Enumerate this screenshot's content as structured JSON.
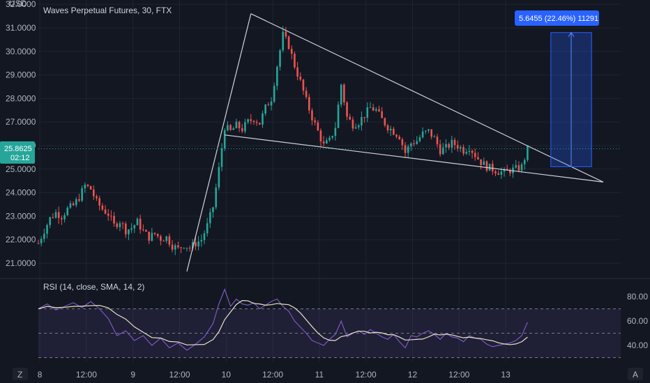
{
  "header": {
    "symbol_title": "Waves Perpetual Futures, 30, FTX",
    "currency": "USD"
  },
  "colors": {
    "background": "#131722",
    "up": "#26a69a",
    "down": "#ef5350",
    "rsi_line": "#7e57c2",
    "rsi_sma": "#e8e4c9",
    "trendline": "#d1d4dc",
    "target_box": "#1e3a8a",
    "target_label_bg": "#2962ff",
    "price_tag_bg": "#26a69a",
    "grid": "#1f2430"
  },
  "price_tag": {
    "price": "25.8625",
    "countdown": "02:12"
  },
  "target_label": "5.6455 (22.46%) 11291",
  "rsi": {
    "label": "RSI (14, close, SMA, 14, 2)",
    "ticks": [
      "80.00",
      "60.00",
      "40.00"
    ],
    "levels": [
      70,
      50,
      30
    ]
  },
  "bottom_left_button": "Z",
  "bottom_right_button": "A",
  "chart_data": {
    "type": "candlestick",
    "title": "Waves Perpetual Futures, 30, FTX",
    "y_ticks": [
      "32.0000",
      "31.0000",
      "30.0000",
      "29.0000",
      "28.0000",
      "27.0000",
      "26.0000",
      "25.0000",
      "24.0000",
      "23.0000",
      "22.0000",
      "21.0000"
    ],
    "ylim": [
      20.6,
      32.0
    ],
    "x_ticks": [
      "8",
      "12:00",
      "9",
      "12:00",
      "10",
      "12:00",
      "11",
      "12:00",
      "12",
      "12:00",
      "13"
    ],
    "price_series": [
      [
        0,
        21.85
      ],
      [
        2,
        22.4
      ],
      [
        4,
        22.9
      ],
      [
        6,
        23.15
      ],
      [
        8,
        23.0
      ],
      [
        10,
        23.3
      ],
      [
        12,
        23.45
      ],
      [
        14,
        23.8
      ],
      [
        16,
        24.3
      ],
      [
        18,
        24.15
      ],
      [
        20,
        23.6
      ],
      [
        22,
        23.3
      ],
      [
        24,
        23.1
      ],
      [
        26,
        22.6
      ],
      [
        28,
        22.8
      ],
      [
        30,
        22.4
      ],
      [
        32,
        22.5
      ],
      [
        34,
        22.75
      ],
      [
        36,
        22.35
      ],
      [
        38,
        22.1
      ],
      [
        40,
        22.25
      ],
      [
        42,
        22.05
      ],
      [
        44,
        22.1
      ],
      [
        46,
        21.75
      ],
      [
        48,
        21.6
      ],
      [
        50,
        21.8
      ],
      [
        52,
        21.65
      ],
      [
        54,
        21.85
      ],
      [
        56,
        22.0
      ],
      [
        58,
        22.6
      ],
      [
        60,
        23.4
      ],
      [
        62,
        25.0
      ],
      [
        64,
        26.8
      ],
      [
        66,
        26.6
      ],
      [
        68,
        26.85
      ],
      [
        70,
        26.7
      ],
      [
        72,
        27.0
      ],
      [
        74,
        27.15
      ],
      [
        76,
        26.95
      ],
      [
        78,
        27.6
      ],
      [
        80,
        28.0
      ],
      [
        82,
        29.4
      ],
      [
        84,
        30.7
      ],
      [
        86,
        30.25
      ],
      [
        88,
        29.4
      ],
      [
        90,
        28.7
      ],
      [
        92,
        27.9
      ],
      [
        94,
        27.2
      ],
      [
        96,
        26.6
      ],
      [
        98,
        26.0
      ],
      [
        100,
        26.2
      ],
      [
        102,
        26.8
      ],
      [
        104,
        28.6
      ],
      [
        106,
        27.2
      ],
      [
        108,
        26.9
      ],
      [
        110,
        27.0
      ],
      [
        112,
        27.3
      ],
      [
        114,
        27.6
      ],
      [
        116,
        27.5
      ],
      [
        118,
        27.1
      ],
      [
        120,
        26.8
      ],
      [
        122,
        26.6
      ],
      [
        124,
        26.4
      ],
      [
        126,
        25.7
      ],
      [
        128,
        26.1
      ],
      [
        130,
        26.2
      ],
      [
        132,
        26.5
      ],
      [
        134,
        26.6
      ],
      [
        136,
        26.3
      ],
      [
        138,
        25.8
      ],
      [
        140,
        25.9
      ],
      [
        142,
        26.1
      ],
      [
        144,
        26.0
      ],
      [
        146,
        25.8
      ],
      [
        148,
        25.95
      ],
      [
        150,
        25.6
      ],
      [
        152,
        25.3
      ],
      [
        154,
        25.1
      ],
      [
        156,
        25.0
      ],
      [
        158,
        24.9
      ],
      [
        160,
        24.85
      ],
      [
        162,
        24.95
      ],
      [
        164,
        25.0
      ],
      [
        166,
        25.1
      ],
      [
        168,
        25.85
      ]
    ],
    "future_bars": 26,
    "trendlines": [
      {
        "from": [
          51,
          20.65
        ],
        "to": [
          73,
          31.6
        ]
      },
      {
        "from": [
          73,
          31.6
        ],
        "to": [
          194,
          24.45
        ]
      },
      {
        "from": [
          64,
          26.45
        ],
        "to": [
          194,
          24.45
        ]
      }
    ],
    "target": {
      "bar_start": 176,
      "bar_end": 190,
      "from": 25.1,
      "to": 30.8,
      "change": "5.6455",
      "percent": "22.46%",
      "bars": "11291"
    },
    "rsi_series": [
      [
        0,
        70
      ],
      [
        3,
        74
      ],
      [
        6,
        69
      ],
      [
        9,
        72
      ],
      [
        12,
        75
      ],
      [
        15,
        71
      ],
      [
        18,
        76
      ],
      [
        21,
        70
      ],
      [
        24,
        62
      ],
      [
        27,
        48
      ],
      [
        30,
        52
      ],
      [
        33,
        44
      ],
      [
        36,
        48
      ],
      [
        39,
        40
      ],
      [
        42,
        46
      ],
      [
        45,
        38
      ],
      [
        48,
        42
      ],
      [
        51,
        36
      ],
      [
        54,
        41
      ],
      [
        57,
        47
      ],
      [
        60,
        58
      ],
      [
        62,
        74
      ],
      [
        64,
        86
      ],
      [
        66,
        72
      ],
      [
        68,
        78
      ],
      [
        70,
        74
      ],
      [
        72,
        73
      ],
      [
        74,
        75
      ],
      [
        76,
        70
      ],
      [
        78,
        73
      ],
      [
        80,
        76
      ],
      [
        82,
        78
      ],
      [
        84,
        72
      ],
      [
        86,
        68
      ],
      [
        88,
        60
      ],
      [
        90,
        55
      ],
      [
        92,
        50
      ],
      [
        94,
        44
      ],
      [
        96,
        42
      ],
      [
        98,
        40
      ],
      [
        100,
        45
      ],
      [
        102,
        49
      ],
      [
        104,
        60
      ],
      [
        106,
        47
      ],
      [
        108,
        50
      ],
      [
        110,
        52
      ],
      [
        112,
        49
      ],
      [
        114,
        53
      ],
      [
        116,
        50
      ],
      [
        118,
        47
      ],
      [
        120,
        45
      ],
      [
        122,
        49
      ],
      [
        124,
        43
      ],
      [
        126,
        38
      ],
      [
        128,
        48
      ],
      [
        130,
        47
      ],
      [
        132,
        50
      ],
      [
        134,
        52
      ],
      [
        136,
        49
      ],
      [
        138,
        45
      ],
      [
        140,
        50
      ],
      [
        142,
        47
      ],
      [
        144,
        46
      ],
      [
        146,
        43
      ],
      [
        148,
        48
      ],
      [
        150,
        46
      ],
      [
        152,
        45
      ],
      [
        154,
        41
      ],
      [
        156,
        39
      ],
      [
        158,
        40
      ],
      [
        160,
        41
      ],
      [
        162,
        42
      ],
      [
        164,
        44
      ],
      [
        166,
        48
      ],
      [
        168,
        59
      ]
    ]
  }
}
